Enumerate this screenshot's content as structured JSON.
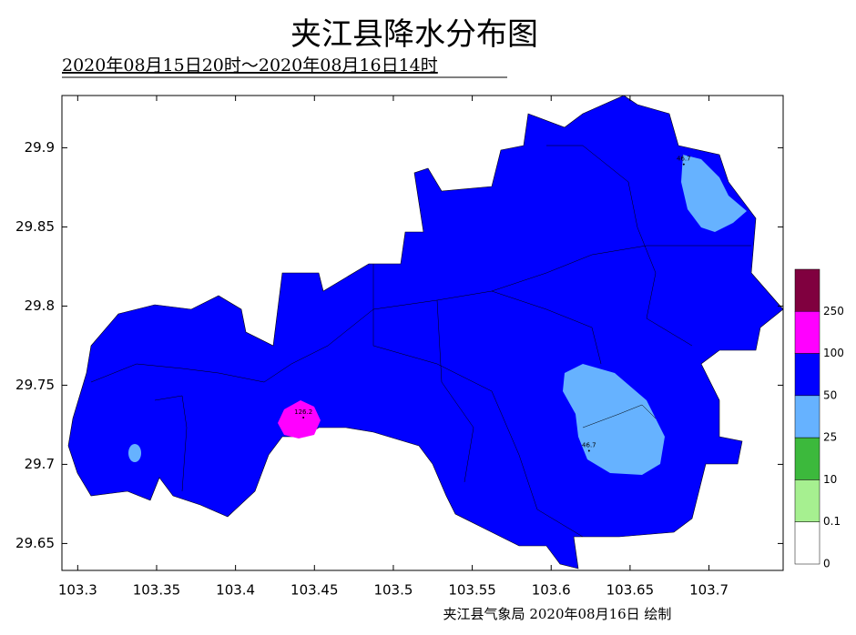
{
  "title": "夹江县降水分布图",
  "subtitle": "2020年08月15日20时～2020年08月16日14时",
  "map": {
    "xlim": [
      103.29,
      103.747
    ],
    "ylim": [
      29.633,
      29.933
    ],
    "xticks": [
      {
        "value": 103.3,
        "label": "103.3"
      },
      103.35,
      103.4,
      103.45,
      {
        "value": 103.5,
        "label": "103.5"
      },
      103.55,
      103.6,
      103.65,
      103.7
    ],
    "yticks": [
      29.9,
      29.85,
      29.8,
      29.75,
      29.7,
      29.65
    ],
    "stations": [
      {
        "label": "126.2",
        "x": 103.443,
        "y": 29.733
      },
      {
        "label": "46.7",
        "x": 103.684,
        "y": 29.893
      },
      {
        "label": "46.7",
        "x": 103.624,
        "y": 29.712
      }
    ]
  },
  "legend": {
    "labels": [
      "250",
      "100",
      "50",
      "25",
      "10",
      "0.1",
      "0"
    ],
    "colors": [
      "#80003f",
      "#ff00ff",
      "#0000ff",
      "#66b2ff",
      "#3cb93c",
      "#a6f090",
      "#ffffff"
    ]
  },
  "footer": "夹江县气象局  2020年08月16日  绘制"
}
